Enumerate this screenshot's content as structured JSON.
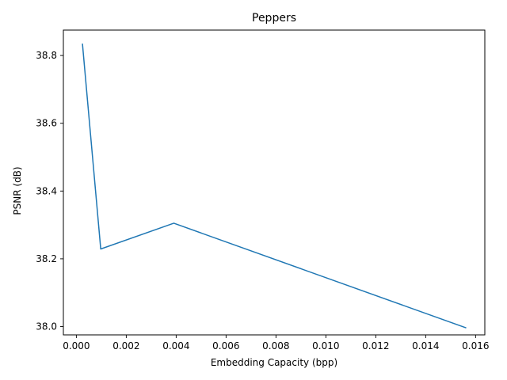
{
  "chart_data": {
    "type": "line",
    "title": "Peppers",
    "xlabel": "Embedding Capacity (bpp)",
    "ylabel": "PSNR (dB)",
    "xlim": [
      -0.00052,
      0.01637
    ],
    "ylim": [
      37.9755,
      38.875
    ],
    "grid": false,
    "x": [
      0.000244,
      0.000977,
      0.003906,
      0.015625
    ],
    "series": [
      {
        "name": "PSNR",
        "color": "#1f77b4",
        "values": [
          38.835,
          38.229,
          38.305,
          37.996
        ]
      }
    ],
    "xticks": [
      0.0,
      0.002,
      0.004,
      0.006,
      0.008,
      0.01,
      0.012,
      0.014,
      0.016
    ],
    "xtick_labels": [
      "0.000",
      "0.002",
      "0.004",
      "0.006",
      "0.008",
      "0.010",
      "0.012",
      "0.014",
      "0.016"
    ],
    "yticks": [
      38.0,
      38.2,
      38.4,
      38.6,
      38.8
    ],
    "ytick_labels": [
      "38.0",
      "38.2",
      "38.4",
      "38.6",
      "38.8"
    ]
  }
}
